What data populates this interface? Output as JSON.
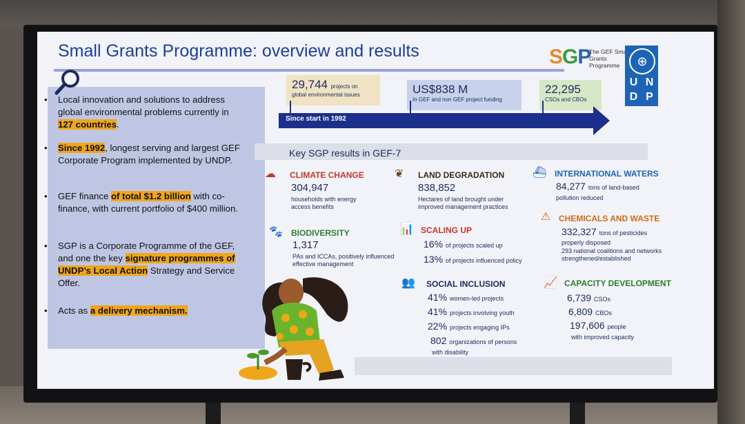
{
  "title": "Small Grants Programme: overview and results",
  "logo": {
    "sgp_s": "S",
    "sgp_g": "G",
    "sgp_p": "P",
    "sgp_subtitle": "The GEF Small Grants Programme",
    "undp_letters": [
      "U",
      "N",
      "D",
      "P"
    ]
  },
  "bullets": [
    {
      "pre": "Local innovation and solutions to address global environmental problems currently in ",
      "hl": "127 countries",
      "post": "."
    },
    {
      "pre": "",
      "hl": "Since 1992",
      "post": ", longest serving and largest GEF Corporate Program implemented by UNDP."
    },
    {
      "pre": "GEF finance ",
      "hl": "of total $1.2 billion",
      "post": " with co-finance, with current portfolio of $400 million."
    },
    {
      "pre": "SGP is a Corporate Programme of the GEF, and one the key ",
      "hl": "signature programmes of UNDP’s Local Action",
      "post": " Strategy and Service Offer."
    },
    {
      "pre": "Acts as ",
      "hl": "a delivery mechanism.",
      "post": ""
    }
  ],
  "bullet_dot": "•",
  "timeline": {
    "label": "Since start in 1992",
    "stats": [
      {
        "value": "29,744",
        "unit": "projects on",
        "desc": "global environmental issues"
      },
      {
        "value": "US$838 M",
        "unit": "",
        "desc": "In GEF and non GEF project funding"
      },
      {
        "value": "22,295",
        "unit": "",
        "desc": "CSOs and CBOs"
      }
    ]
  },
  "key_title": "Key SGP results in GEF-7",
  "results": {
    "climate": {
      "title": "CLIMATE CHANGE",
      "value": "304,947",
      "desc": "households with energy access benefits"
    },
    "land": {
      "title": "LAND DEGRADATION",
      "value": "838,852",
      "desc": "Hectares of land brought under improved management practices"
    },
    "waters": {
      "title": "INTERNATIONAL WATERS",
      "value": "84,277",
      "unit": "tons of land-based",
      "desc": "pollution reduced"
    },
    "biodiversity": {
      "title": "BIODIVERSITY",
      "value": "1,317",
      "desc": "PAs and ICCAs, positively influenced effective management"
    },
    "scaling": {
      "title": "SCALING UP",
      "rows": [
        {
          "n": "16%",
          "t": "of projects scaled up"
        },
        {
          "n": "13%",
          "t": "of projects influenced policy"
        }
      ]
    },
    "chemicals": {
      "title": "CHEMICALS AND WASTE",
      "value": "332,327",
      "unit": "tons of pesticides",
      "desc1": "properly disposed",
      "desc2": "293 national coalitions and networks strengthened/established"
    },
    "social": {
      "title": "SOCIAL INCLUSION",
      "rows": [
        {
          "n": "41%",
          "t": "women-led projects"
        },
        {
          "n": "41%",
          "t": "projects involving youth"
        },
        {
          "n": "22%",
          "t": "projects engaging IPs"
        },
        {
          "n": "802",
          "t": "organizations of persons"
        }
      ],
      "tail": "with disability"
    },
    "capacity": {
      "title": "CAPACITY DEVELOPMENT",
      "rows": [
        {
          "n": "6,739",
          "t": "CSOs"
        },
        {
          "n": "6,809",
          "t": "CBOs"
        },
        {
          "n": "197,606",
          "t": "people"
        }
      ],
      "tail": "with improved capacity"
    }
  },
  "colors": {
    "title": "#1b3f9b",
    "highlight": "#f0a619",
    "arrow": "#1d2f8c",
    "undp": "#1d64b5"
  }
}
